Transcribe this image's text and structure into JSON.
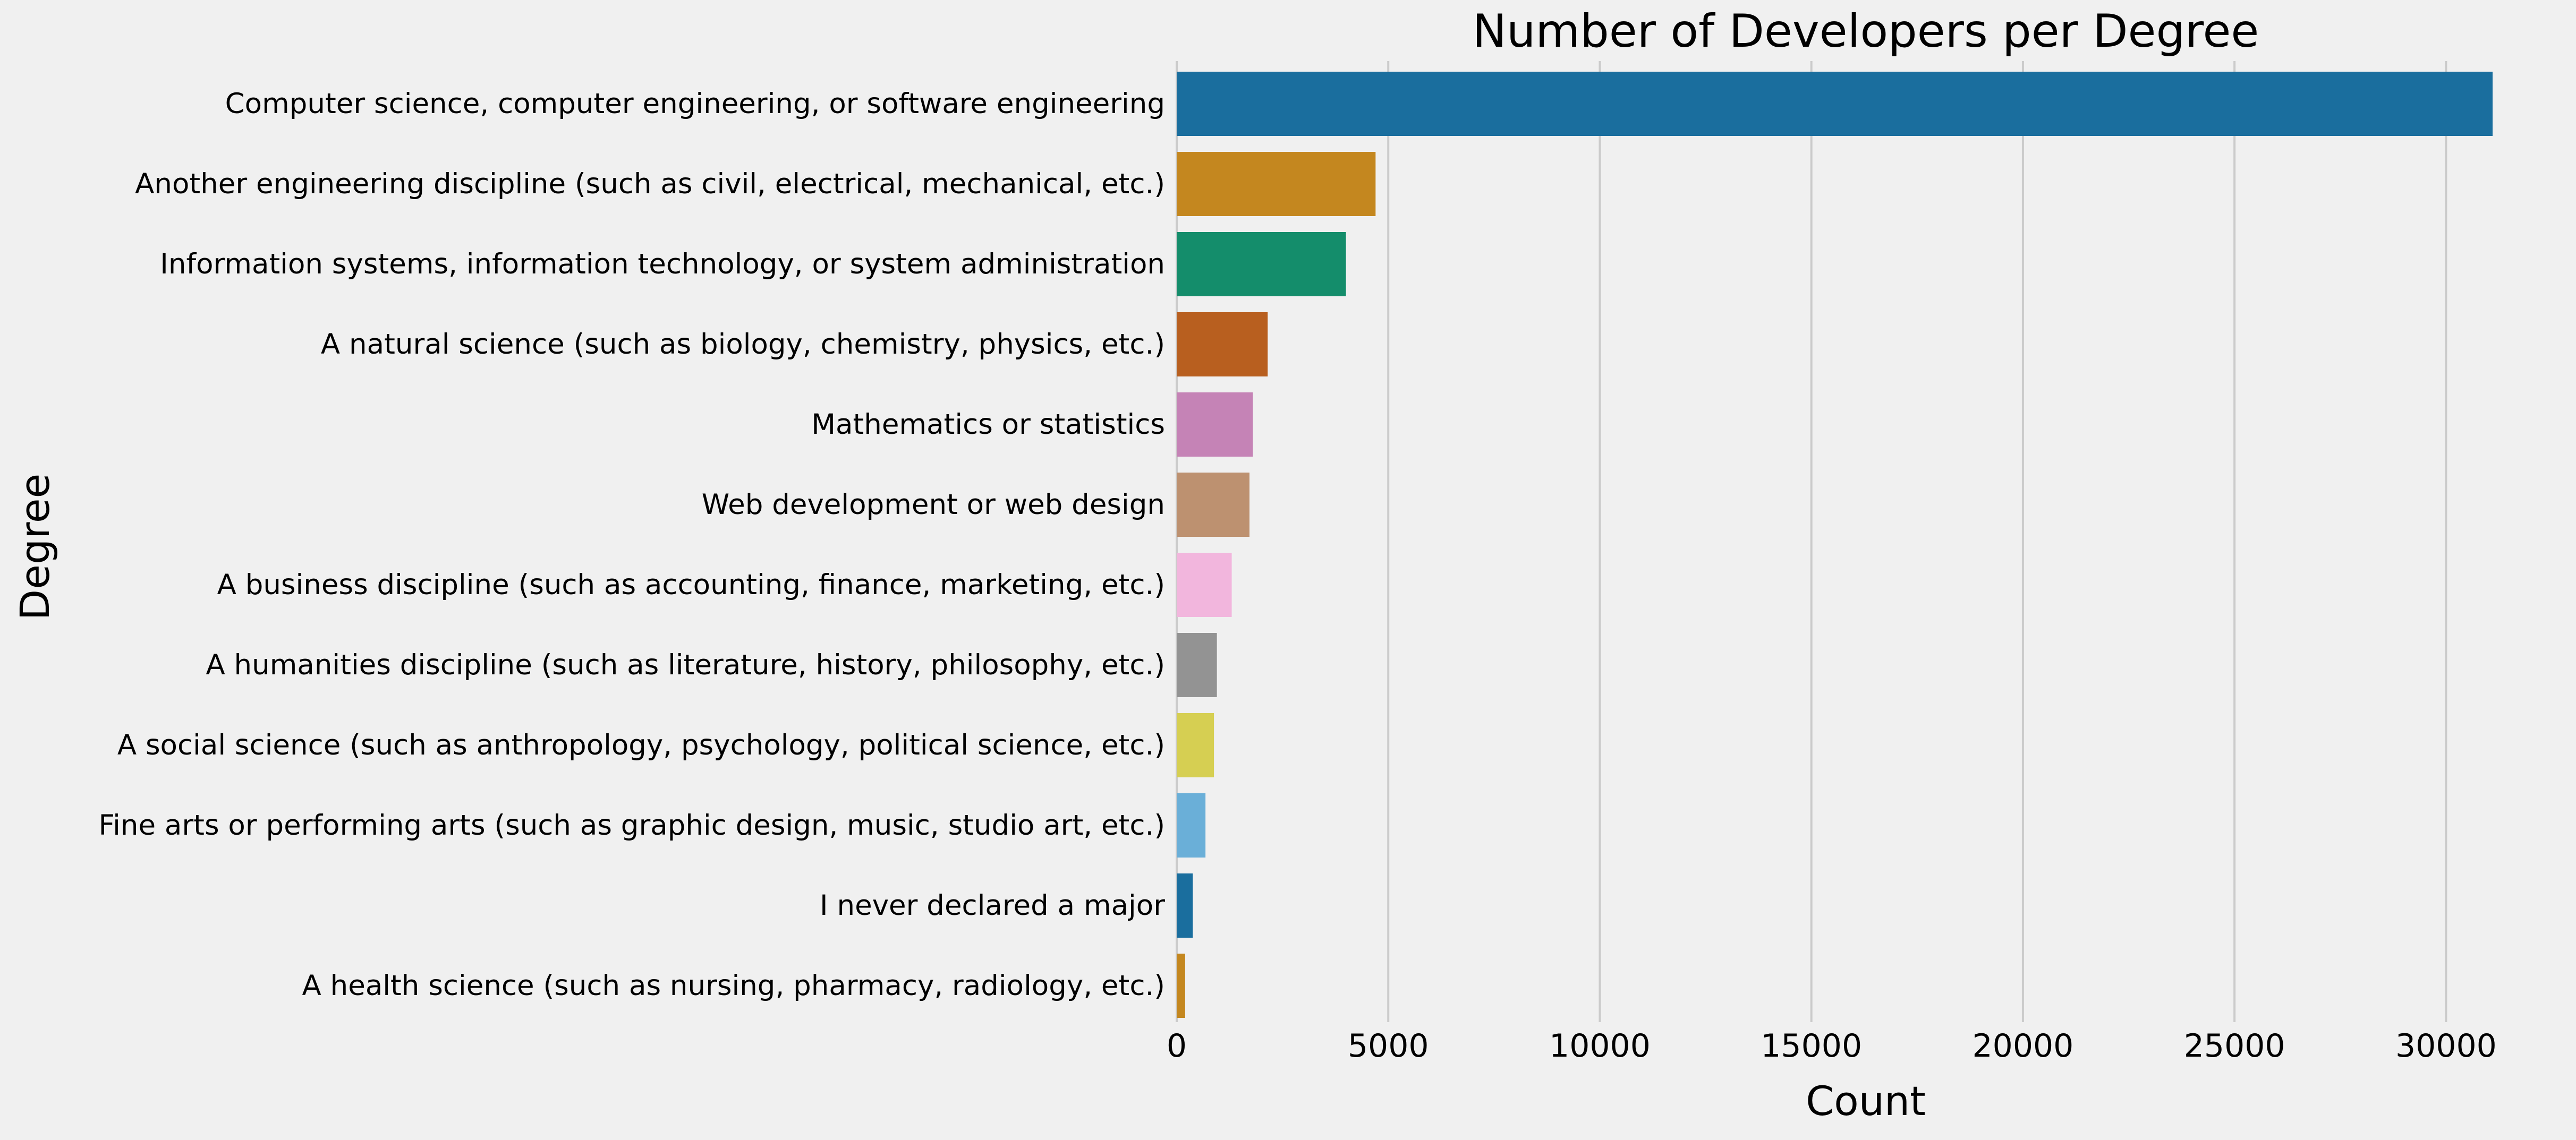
{
  "chart_data": {
    "type": "bar",
    "orientation": "horizontal",
    "title": "Number of Developers per Degree",
    "xlabel": "Count",
    "ylabel": "Degree",
    "xlim": [
      0,
      31500
    ],
    "xticks": [
      0,
      5000,
      10000,
      15000,
      20000,
      25000,
      30000
    ],
    "xtick_labels": [
      "0",
      "5000",
      "10000",
      "15000",
      "20000",
      "25000",
      "30000"
    ],
    "grid": "vertical",
    "categories": [
      "Computer science, computer engineering, or software engineering",
      "Another engineering discipline (such as civil, electrical, mechanical, etc.)",
      "Information systems, information technology, or system administration",
      "A natural science (such as biology, chemistry, physics, etc.)",
      "Mathematics or statistics",
      "Web development or web design",
      "A business discipline (such as accounting, finance, marketing, etc.)",
      "A humanities discipline (such as literature, history, philosophy, etc.)",
      "A social science (such as anthropology, psychology, political science, etc.)",
      "Fine arts or performing arts (such as graphic design, music, studio art, etc.)",
      "I never declared a major",
      "A health science (such as nursing, pharmacy, radiology, etc.)"
    ],
    "values": [
      31100,
      4700,
      4000,
      2150,
      1800,
      1720,
      1300,
      950,
      880,
      680,
      380,
      200
    ],
    "colors": [
      "#1a6e9e",
      "#c4871f",
      "#148d6b",
      "#b85f1f",
      "#c583b6",
      "#bd9170",
      "#f2b6dd",
      "#939393",
      "#d6cf52",
      "#6aafd8",
      "#1a6e9e",
      "#c4871f"
    ]
  }
}
